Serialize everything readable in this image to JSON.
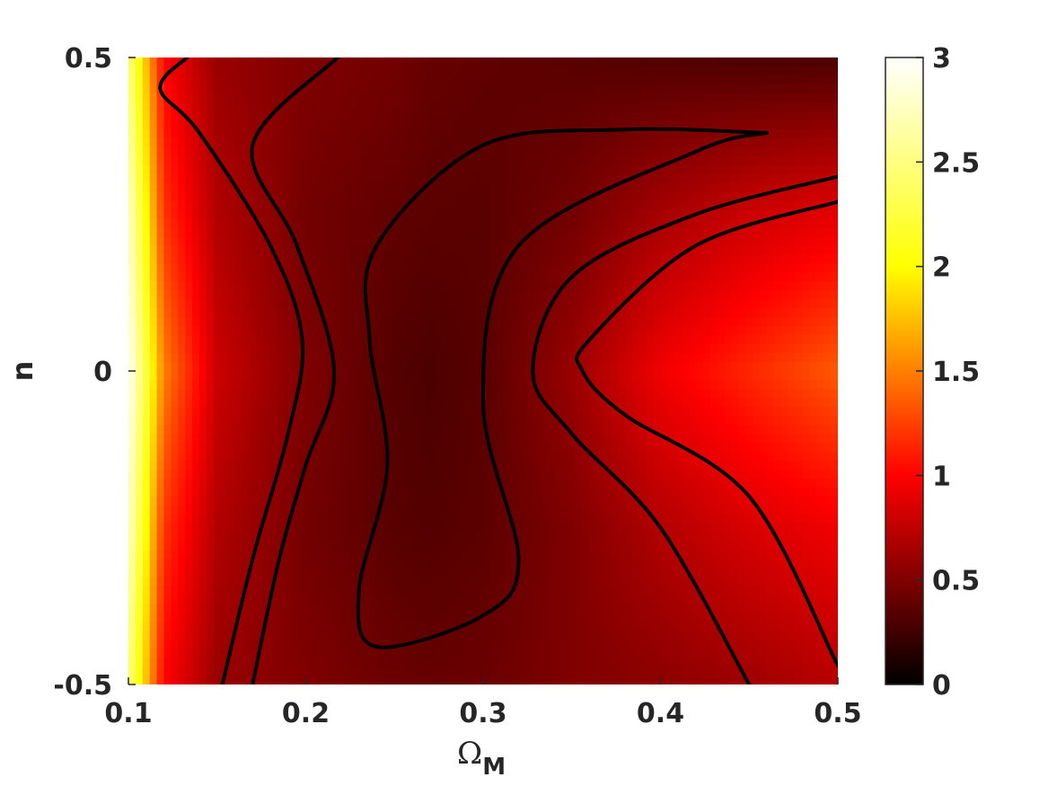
{
  "chart_data": {
    "type": "heatmap",
    "subtype": "filled-contour",
    "xlabel": "Ω",
    "xlabel_subscript": "M",
    "ylabel": "n",
    "xlim": [
      0.1,
      0.5
    ],
    "ylim": [
      -0.5,
      0.5
    ],
    "xticks": [
      0.1,
      0.2,
      0.3,
      0.4,
      0.5
    ],
    "xtick_labels": [
      "0.1",
      "0.2",
      "0.3",
      "0.4",
      "0.5"
    ],
    "yticks": [
      -0.5,
      0,
      0.5
    ],
    "ytick_labels": [
      "-0.5",
      "0",
      "0.5"
    ],
    "colormap": "hot",
    "colorbar": {
      "range": [
        0,
        3
      ],
      "ticks": [
        0,
        0.5,
        1,
        1.5,
        2,
        2.5,
        3
      ],
      "tick_labels": [
        "0",
        "0.5",
        "1",
        "1.5",
        "2",
        "2.5",
        "3"
      ]
    },
    "grid": false,
    "field_estimate": {
      "x": [
        0.1,
        0.12,
        0.15,
        0.2,
        0.25,
        0.27,
        0.3,
        0.35,
        0.4,
        0.45,
        0.5
      ],
      "n": [
        -0.5,
        -0.25,
        0,
        0.25,
        0.5
      ],
      "values": [
        [
          2.5,
          1.0,
          0.6,
          0.5,
          0.42,
          0.4,
          0.42,
          0.5,
          0.55,
          0.62,
          0.72
        ],
        [
          2.8,
          1.2,
          0.7,
          0.45,
          0.35,
          0.33,
          0.36,
          0.5,
          0.7,
          0.85,
          0.95
        ],
        [
          3.0,
          1.5,
          0.8,
          0.5,
          0.33,
          0.3,
          0.35,
          0.6,
          0.95,
          1.15,
          1.35
        ],
        [
          2.8,
          1.2,
          0.7,
          0.45,
          0.38,
          0.36,
          0.35,
          0.45,
          0.65,
          0.8,
          0.9
        ],
        [
          2.5,
          1.0,
          0.6,
          0.5,
          0.45,
          0.4,
          0.38,
          0.35,
          0.32,
          0.3,
          0.3
        ]
      ]
    },
    "contour_lines": [
      {
        "points": [
          [
            0.133,
            0.5
          ],
          [
            0.118,
            0.45
          ],
          [
            0.14,
            0.38
          ],
          [
            0.18,
            0.2
          ],
          [
            0.198,
            0.05
          ],
          [
            0.19,
            -0.1
          ],
          [
            0.17,
            -0.3
          ],
          [
            0.153,
            -0.5
          ]
        ]
      },
      {
        "points": [
          [
            0.218,
            0.5
          ],
          [
            0.17,
            0.36
          ],
          [
            0.195,
            0.2
          ],
          [
            0.216,
            0.0
          ],
          [
            0.2,
            -0.15
          ],
          [
            0.185,
            -0.3
          ],
          [
            0.17,
            -0.5
          ]
        ]
      },
      {
        "points": [
          [
            0.46,
            0.38
          ],
          [
            0.38,
            0.385
          ],
          [
            0.3,
            0.36
          ],
          [
            0.24,
            0.2
          ],
          [
            0.236,
            0.05
          ],
          [
            0.246,
            -0.15
          ],
          [
            0.23,
            -0.35
          ],
          [
            0.24,
            -0.44
          ],
          [
            0.3,
            -0.39
          ],
          [
            0.32,
            -0.3
          ],
          [
            0.3,
            -0.05
          ],
          [
            0.32,
            0.2
          ],
          [
            0.42,
            0.35
          ],
          [
            0.46,
            0.38
          ]
        ]
      },
      {
        "points": [
          [
            0.5,
            0.31
          ],
          [
            0.42,
            0.25
          ],
          [
            0.35,
            0.15
          ],
          [
            0.328,
            0.0
          ],
          [
            0.35,
            -0.1
          ],
          [
            0.4,
            -0.25
          ],
          [
            0.45,
            -0.5
          ]
        ]
      },
      {
        "points": [
          [
            0.5,
            0.27
          ],
          [
            0.42,
            0.2
          ],
          [
            0.36,
            0.05
          ],
          [
            0.356,
            0.0
          ],
          [
            0.38,
            -0.07
          ],
          [
            0.45,
            -0.2
          ],
          [
            0.5,
            -0.47
          ]
        ]
      }
    ]
  }
}
